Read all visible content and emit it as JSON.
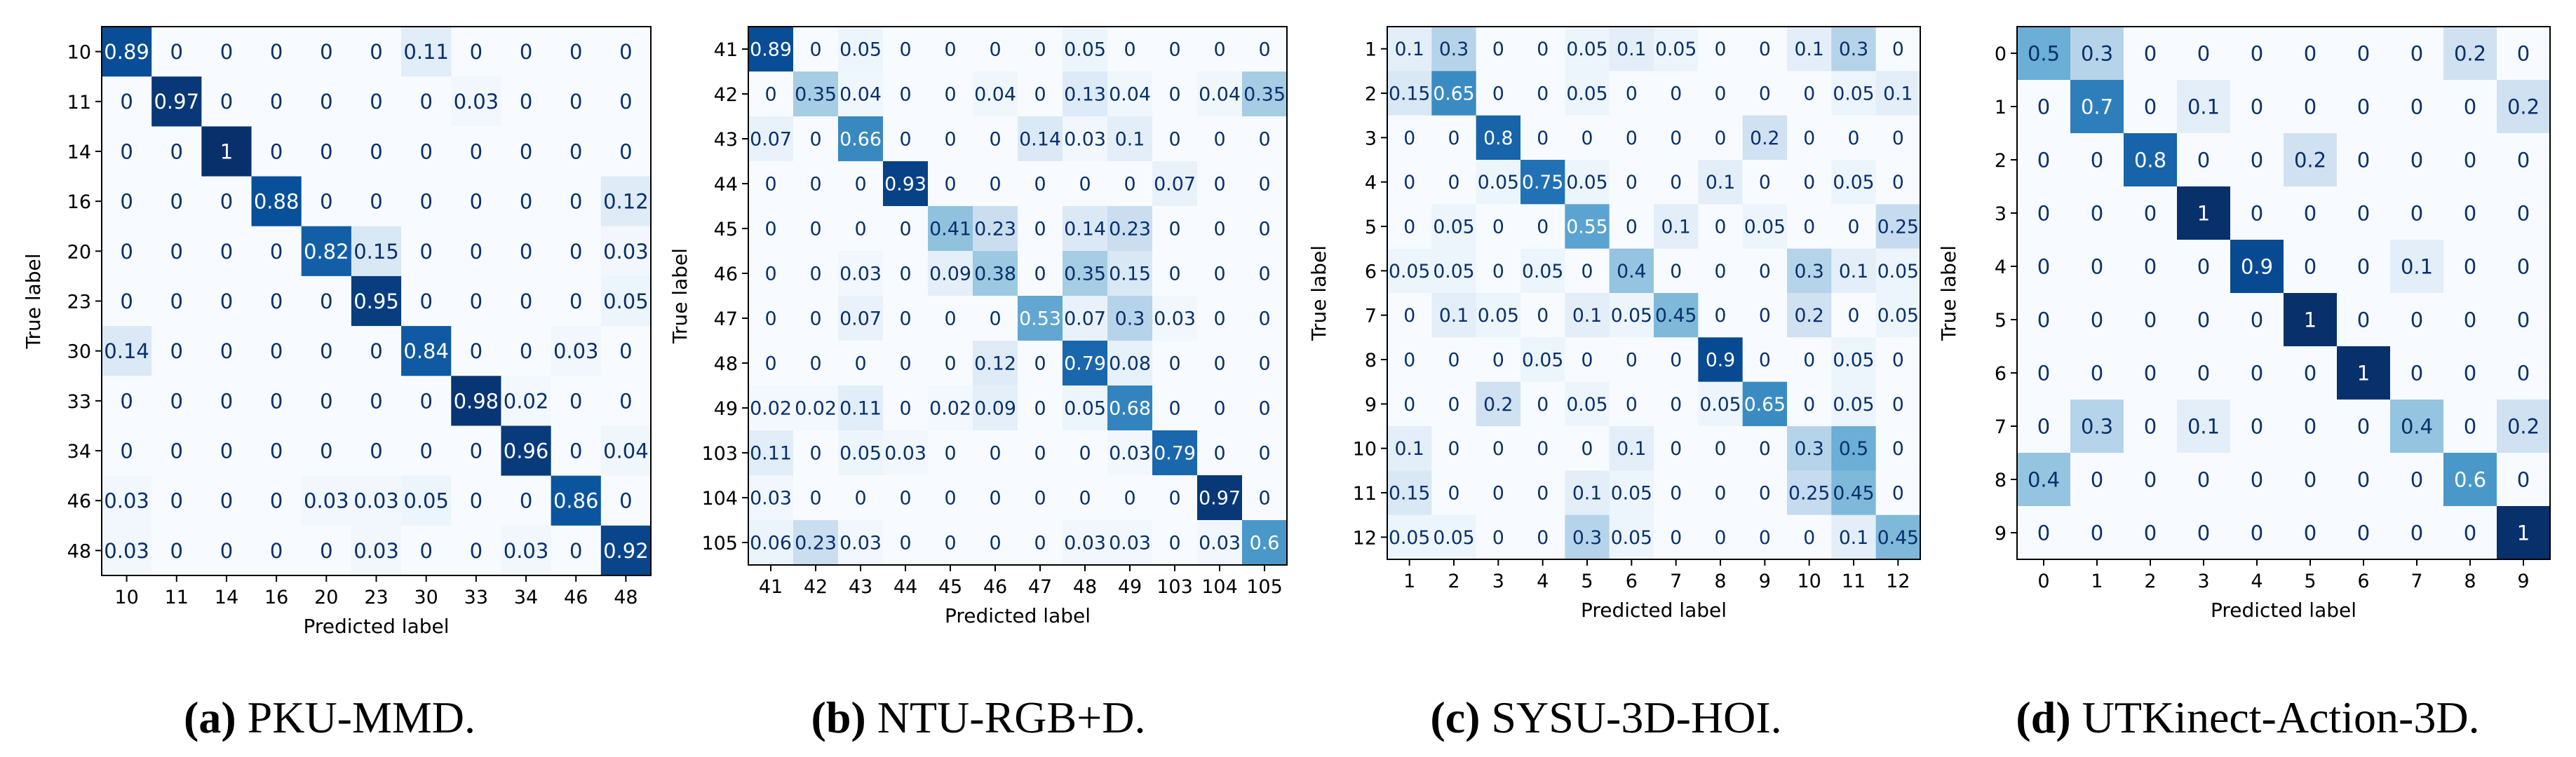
{
  "figure": {
    "axis_label_x": "Predicted label",
    "axis_label_y": "True label"
  },
  "colors": {
    "cmap_low": "#f7fbff",
    "cmap_mid": "#6baed6",
    "cmap_high": "#08306b",
    "text_dark": "#08306b",
    "text_light": "#ffffff",
    "axis": "#000000"
  },
  "chart_data": [
    {
      "type": "heatmap",
      "caption_letter": "(a)",
      "caption_text": " PKU-MMD.",
      "xlabel": "Predicted label",
      "ylabel": "True label",
      "labels": [
        "10",
        "11",
        "14",
        "16",
        "20",
        "23",
        "30",
        "33",
        "34",
        "46",
        "48"
      ],
      "values": [
        [
          "0.89",
          "0",
          "0",
          "0",
          "0",
          "0",
          "0.11",
          "0",
          "0",
          "0",
          "0"
        ],
        [
          "0",
          "0.97",
          "0",
          "0",
          "0",
          "0",
          "0",
          "0.03",
          "0",
          "0",
          "0"
        ],
        [
          "0",
          "0",
          "1",
          "0",
          "0",
          "0",
          "0",
          "0",
          "0",
          "0",
          "0"
        ],
        [
          "0",
          "0",
          "0",
          "0.88",
          "0",
          "0",
          "0",
          "0",
          "0",
          "0",
          "0.12"
        ],
        [
          "0",
          "0",
          "0",
          "0",
          "0.82",
          "0.15",
          "0",
          "0",
          "0",
          "0",
          "0.03"
        ],
        [
          "0",
          "0",
          "0",
          "0",
          "0",
          "0.95",
          "0",
          "0",
          "0",
          "0",
          "0.05"
        ],
        [
          "0.14",
          "0",
          "0",
          "0",
          "0",
          "0",
          "0.84",
          "0",
          "0",
          "0.03",
          "0"
        ],
        [
          "0",
          "0",
          "0",
          "0",
          "0",
          "0",
          "0",
          "0.98",
          "0.02",
          "0",
          "0"
        ],
        [
          "0",
          "0",
          "0",
          "0",
          "0",
          "0",
          "0",
          "0",
          "0.96",
          "0",
          "0.04"
        ],
        [
          "0.03",
          "0",
          "0",
          "0",
          "0.03",
          "0.03",
          "0.05",
          "0",
          "0",
          "0.86",
          "0"
        ],
        [
          "0.03",
          "0",
          "0",
          "0",
          "0",
          "0.03",
          "0",
          "0",
          "0.03",
          "0",
          "0.92"
        ]
      ],
      "vmin": 0,
      "vmax": 1
    },
    {
      "type": "heatmap",
      "caption_letter": "(b)",
      "caption_text": " NTU-RGB+D.",
      "xlabel": "Predicted label",
      "ylabel": "True label",
      "labels": [
        "41",
        "42",
        "43",
        "44",
        "45",
        "46",
        "47",
        "48",
        "49",
        "103",
        "104",
        "105"
      ],
      "values": [
        [
          "0.89",
          "0",
          "0.05",
          "0",
          "0",
          "0",
          "0",
          "0.05",
          "0",
          "0",
          "0",
          "0"
        ],
        [
          "0",
          "0.35",
          "0.04",
          "0",
          "0",
          "0.04",
          "0",
          "0.13",
          "0.04",
          "0",
          "0.04",
          "0.35"
        ],
        [
          "0.07",
          "0",
          "0.66",
          "0",
          "0",
          "0",
          "0.14",
          "0.03",
          "0.1",
          "0",
          "0",
          "0"
        ],
        [
          "0",
          "0",
          "0",
          "0.93",
          "0",
          "0",
          "0",
          "0",
          "0",
          "0.07",
          "0",
          "0"
        ],
        [
          "0",
          "0",
          "0",
          "0",
          "0.41",
          "0.23",
          "0",
          "0.14",
          "0.23",
          "0",
          "0",
          "0"
        ],
        [
          "0",
          "0",
          "0.03",
          "0",
          "0.09",
          "0.38",
          "0",
          "0.35",
          "0.15",
          "0",
          "0",
          "0"
        ],
        [
          "0",
          "0",
          "0.07",
          "0",
          "0",
          "0",
          "0.53",
          "0.07",
          "0.3",
          "0.03",
          "0",
          "0"
        ],
        [
          "0",
          "0",
          "0",
          "0",
          "0",
          "0.12",
          "0",
          "0.79",
          "0.08",
          "0",
          "0",
          "0"
        ],
        [
          "0.02",
          "0.02",
          "0.11",
          "0",
          "0.02",
          "0.09",
          "0",
          "0.05",
          "0.68",
          "0",
          "0",
          "0"
        ],
        [
          "0.11",
          "0",
          "0.05",
          "0.03",
          "0",
          "0",
          "0",
          "0",
          "0.03",
          "0.79",
          "0",
          "0"
        ],
        [
          "0.03",
          "0",
          "0",
          "0",
          "0",
          "0",
          "0",
          "0",
          "0",
          "0",
          "0.97",
          "0"
        ],
        [
          "0.06",
          "0.23",
          "0.03",
          "0",
          "0",
          "0",
          "0",
          "0.03",
          "0.03",
          "0",
          "0.03",
          "0.6"
        ]
      ],
      "vmin": 0,
      "vmax": 1
    },
    {
      "type": "heatmap",
      "caption_letter": "(c)",
      "caption_text": " SYSU-3D-HOI.",
      "xlabel": "Predicted label",
      "ylabel": "True label",
      "labels": [
        "1",
        "2",
        "3",
        "4",
        "5",
        "6",
        "7",
        "8",
        "9",
        "10",
        "11",
        "12"
      ],
      "values": [
        [
          "0.1",
          "0.3",
          "0",
          "0",
          "0.05",
          "0.1",
          "0.05",
          "0",
          "0",
          "0.1",
          "0.3",
          "0"
        ],
        [
          "0.15",
          "0.65",
          "0",
          "0",
          "0.05",
          "0",
          "0",
          "0",
          "0",
          "0",
          "0.05",
          "0.1"
        ],
        [
          "0",
          "0",
          "0.8",
          "0",
          "0",
          "0",
          "0",
          "0",
          "0.2",
          "0",
          "0",
          "0"
        ],
        [
          "0",
          "0",
          "0.05",
          "0.75",
          "0.05",
          "0",
          "0",
          "0.1",
          "0",
          "0",
          "0.05",
          "0"
        ],
        [
          "0",
          "0.05",
          "0",
          "0",
          "0.55",
          "0",
          "0.1",
          "0",
          "0.05",
          "0",
          "0",
          "0.25"
        ],
        [
          "0.05",
          "0.05",
          "0",
          "0.05",
          "0",
          "0.4",
          "0",
          "0",
          "0",
          "0.3",
          "0.1",
          "0.05"
        ],
        [
          "0",
          "0.1",
          "0.05",
          "0",
          "0.1",
          "0.05",
          "0.45",
          "0",
          "0",
          "0.2",
          "0",
          "0.05"
        ],
        [
          "0",
          "0",
          "0",
          "0.05",
          "0",
          "0",
          "0",
          "0.9",
          "0",
          "0",
          "0.05",
          "0"
        ],
        [
          "0",
          "0",
          "0.2",
          "0",
          "0.05",
          "0",
          "0",
          "0.05",
          "0.65",
          "0",
          "0.05",
          "0"
        ],
        [
          "0.1",
          "0",
          "0",
          "0",
          "0",
          "0.1",
          "0",
          "0",
          "0",
          "0.3",
          "0.5",
          "0"
        ],
        [
          "0.15",
          "0",
          "0",
          "0",
          "0.1",
          "0.05",
          "0",
          "0",
          "0",
          "0.25",
          "0.45",
          "0"
        ],
        [
          "0.05",
          "0.05",
          "0",
          "0",
          "0.3",
          "0.05",
          "0",
          "0",
          "0",
          "0",
          "0.1",
          "0.45"
        ]
      ],
      "vmin": 0,
      "vmax": 1
    },
    {
      "type": "heatmap",
      "caption_letter": "(d)",
      "caption_text": " UTKinect-Action-3D.",
      "xlabel": "Predicted label",
      "ylabel": "True label",
      "labels": [
        "0",
        "1",
        "2",
        "3",
        "4",
        "5",
        "6",
        "7",
        "8",
        "9"
      ],
      "values": [
        [
          "0.5",
          "0.3",
          "0",
          "0",
          "0",
          "0",
          "0",
          "0",
          "0.2",
          "0"
        ],
        [
          "0",
          "0.7",
          "0",
          "0.1",
          "0",
          "0",
          "0",
          "0",
          "0",
          "0.2"
        ],
        [
          "0",
          "0",
          "0.8",
          "0",
          "0",
          "0.2",
          "0",
          "0",
          "0",
          "0"
        ],
        [
          "0",
          "0",
          "0",
          "1",
          "0",
          "0",
          "0",
          "0",
          "0",
          "0"
        ],
        [
          "0",
          "0",
          "0",
          "0",
          "0.9",
          "0",
          "0",
          "0.1",
          "0",
          "0"
        ],
        [
          "0",
          "0",
          "0",
          "0",
          "0",
          "1",
          "0",
          "0",
          "0",
          "0"
        ],
        [
          "0",
          "0",
          "0",
          "0",
          "0",
          "0",
          "1",
          "0",
          "0",
          "0"
        ],
        [
          "0",
          "0.3",
          "0",
          "0.1",
          "0",
          "0",
          "0",
          "0.4",
          "0",
          "0.2"
        ],
        [
          "0.4",
          "0",
          "0",
          "0",
          "0",
          "0",
          "0",
          "0",
          "0.6",
          "0"
        ],
        [
          "0",
          "0",
          "0",
          "0",
          "0",
          "0",
          "0",
          "0",
          "0",
          "1"
        ]
      ],
      "vmin": 0,
      "vmax": 1
    }
  ]
}
